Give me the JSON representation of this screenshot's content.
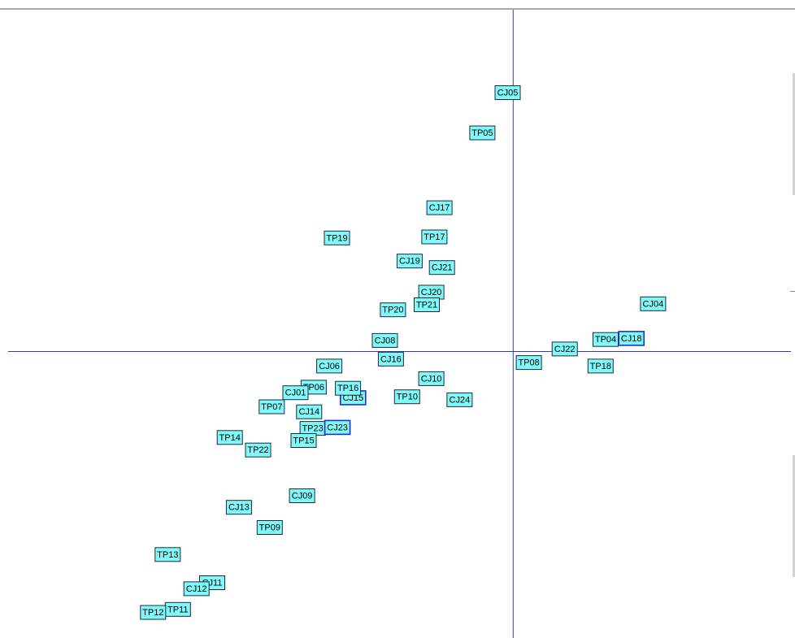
{
  "chart_data": {
    "type": "scatter",
    "title": "",
    "xlabel": "",
    "ylabel": "",
    "xlim": [
      -1.0,
      0.55
    ],
    "ylim": [
      -0.57,
      0.68
    ],
    "axes_origin": [
      0,
      0
    ],
    "grid": false,
    "colors": {
      "box_fill": "#7ff9f9",
      "box_stroke": "#1c2a3a",
      "selected_stroke": "#1f2fd6",
      "axis_line": "#3a3aa0"
    },
    "points": [
      {
        "label": "CJ05",
        "x": -0.011,
        "y": 0.515
      },
      {
        "label": "TP05",
        "x": -0.061,
        "y": 0.435
      },
      {
        "label": "CJ17",
        "x": -0.146,
        "y": 0.286
      },
      {
        "label": "TP19",
        "x": -0.349,
        "y": 0.226
      },
      {
        "label": "TP17",
        "x": -0.156,
        "y": 0.228
      },
      {
        "label": "CJ19",
        "x": -0.205,
        "y": 0.18
      },
      {
        "label": "CJ21",
        "x": -0.141,
        "y": 0.167
      },
      {
        "label": "CJ20",
        "x": -0.162,
        "y": 0.118
      },
      {
        "label": "TP21",
        "x": -0.171,
        "y": 0.093
      },
      {
        "label": "TP20",
        "x": -0.238,
        "y": 0.083
      },
      {
        "label": "CJ04",
        "x": 0.277,
        "y": 0.095
      },
      {
        "label": "CJ08",
        "x": -0.254,
        "y": 0.022
      },
      {
        "label": "TP04",
        "x": 0.183,
        "y": 0.024
      },
      {
        "label": "CJ18",
        "x": 0.234,
        "y": 0.026
      },
      {
        "label": "CJ22",
        "x": 0.102,
        "y": 0.005
      },
      {
        "label": "CJ16",
        "x": -0.242,
        "y": -0.015
      },
      {
        "label": "TP08",
        "x": 0.031,
        "y": -0.022
      },
      {
        "label": "TP18",
        "x": 0.173,
        "y": -0.029
      },
      {
        "label": "CJ06",
        "x": -0.364,
        "y": -0.029
      },
      {
        "label": "CJ10",
        "x": -0.162,
        "y": -0.054
      },
      {
        "label": "CJ15",
        "x": -0.317,
        "y": -0.092
      },
      {
        "label": "TP06",
        "x": -0.395,
        "y": -0.071
      },
      {
        "label": "TP16",
        "x": -0.327,
        "y": -0.073
      },
      {
        "label": "CJ01",
        "x": -0.431,
        "y": -0.082
      },
      {
        "label": "TP10",
        "x": -0.21,
        "y": -0.09
      },
      {
        "label": "CJ24",
        "x": -0.106,
        "y": -0.096
      },
      {
        "label": "TP07",
        "x": -0.478,
        "y": -0.11
      },
      {
        "label": "CJ14",
        "x": -0.404,
        "y": -0.12
      },
      {
        "label": "TP23",
        "x": -0.397,
        "y": -0.153
      },
      {
        "label": "CJ23",
        "x": -0.348,
        "y": -0.151
      },
      {
        "label": "TP14",
        "x": -0.561,
        "y": -0.171
      },
      {
        "label": "TP15",
        "x": -0.415,
        "y": -0.177
      },
      {
        "label": "TP22",
        "x": -0.505,
        "y": -0.196
      },
      {
        "label": "CJ09",
        "x": -0.418,
        "y": -0.287
      },
      {
        "label": "CJ13",
        "x": -0.543,
        "y": -0.31
      },
      {
        "label": "TP09",
        "x": -0.482,
        "y": -0.35
      },
      {
        "label": "TP13",
        "x": -0.684,
        "y": -0.404
      },
      {
        "label": "CJ11",
        "x": -0.596,
        "y": -0.46
      },
      {
        "label": "CJ12",
        "x": -0.627,
        "y": -0.472
      },
      {
        "label": "TP11",
        "x": -0.664,
        "y": -0.513
      },
      {
        "label": "TP12",
        "x": -0.713,
        "y": -0.519
      }
    ],
    "selected": [
      "CJ18",
      "CJ23",
      "CJ15"
    ]
  }
}
